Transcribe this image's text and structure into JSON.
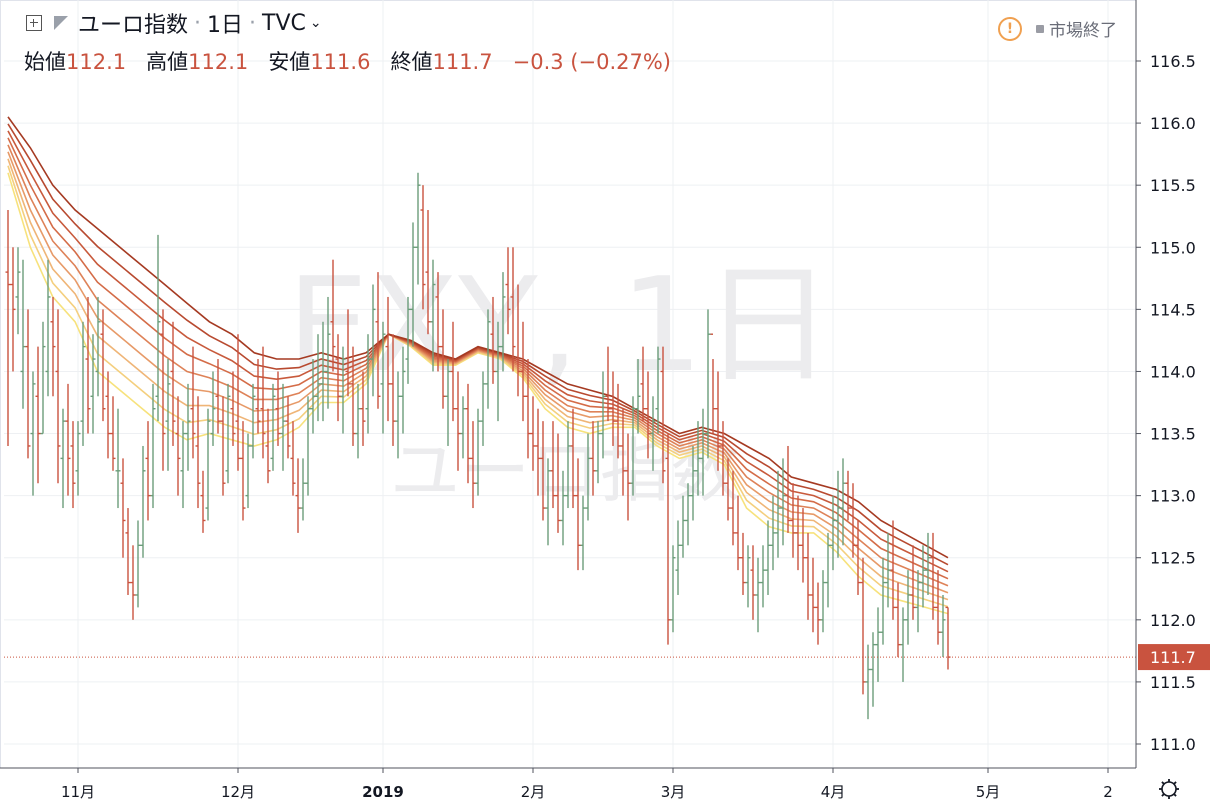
{
  "header": {
    "symbol": "ユーロ指数",
    "interval": "1日",
    "exchange": "TVC",
    "dot1": "·",
    "dot2": "·"
  },
  "ohlc": {
    "open_label": "始値",
    "open": "112.1",
    "high_label": "高値",
    "high": "112.1",
    "low_label": "安値",
    "low": "111.6",
    "close_label": "終値",
    "close": "111.7",
    "change": "−0.3 (−0.27%)"
  },
  "status": {
    "market": "市場終了",
    "warn_icon": "!"
  },
  "watermark": {
    "line1": "EXY, 1日",
    "line2": "ユーロ指数"
  },
  "price_label": "111.7",
  "colors": {
    "up": "#6b9d7a",
    "down": "#c9533f",
    "ribbon": [
      "#a53a22",
      "#b84a30",
      "#c85a3c",
      "#d46c48",
      "#de8258",
      "#e79a68",
      "#efb577",
      "#f4cf7e",
      "#f7e27c"
    ]
  },
  "chart_data": {
    "type": "ohlc",
    "ylim": [
      110.8,
      116.8
    ],
    "yticks": [
      "111.0",
      "111.5",
      "112.0",
      "112.5",
      "113.0",
      "113.5",
      "114.0",
      "114.5",
      "115.0",
      "115.5",
      "116.0",
      "116.5"
    ],
    "x_ticks": [
      {
        "label": "11月",
        "i": 14
      },
      {
        "label": "12月",
        "i": 46
      },
      {
        "label": "2019",
        "i": 75
      },
      {
        "label": "2月",
        "i": 105
      },
      {
        "label": "3月",
        "i": 133
      },
      {
        "label": "4月",
        "i": 165
      },
      {
        "label": "5月",
        "i": 196
      },
      {
        "label": "2",
        "i": 220
      }
    ],
    "bars": [
      [
        114.8,
        115.3,
        113.4,
        114.7
      ],
      [
        114.7,
        115.0,
        114.0,
        114.5
      ],
      [
        114.6,
        115.0,
        114.3,
        114.8
      ],
      [
        114.0,
        114.9,
        113.7,
        114.2
      ],
      [
        114.2,
        114.5,
        113.3,
        113.4
      ],
      [
        113.5,
        114.0,
        113.0,
        113.9
      ],
      [
        113.8,
        114.2,
        113.1,
        113.5
      ],
      [
        113.5,
        114.4,
        113.5,
        114.2
      ],
      [
        114.0,
        114.9,
        113.8,
        114.6
      ],
      [
        114.4,
        114.6,
        113.8,
        114.2
      ],
      [
        114.0,
        114.5,
        113.1,
        113.4
      ],
      [
        113.3,
        113.7,
        112.9,
        113.6
      ],
      [
        113.6,
        113.9,
        113.0,
        113.3
      ],
      [
        113.4,
        113.6,
        112.9,
        113.1
      ],
      [
        113.2,
        113.6,
        113.0,
        113.5
      ],
      [
        113.6,
        114.4,
        113.4,
        114.2
      ],
      [
        114.1,
        114.6,
        113.5,
        113.7
      ],
      [
        113.8,
        114.3,
        113.5,
        114.1
      ],
      [
        114.0,
        114.6,
        113.8,
        114.4
      ],
      [
        114.3,
        114.5,
        113.6,
        113.7
      ],
      [
        113.8,
        114.0,
        113.3,
        113.5
      ],
      [
        113.5,
        113.8,
        113.2,
        113.3
      ],
      [
        113.2,
        113.7,
        112.9,
        113.2
      ],
      [
        113.1,
        113.3,
        112.5,
        112.8
      ],
      [
        112.7,
        112.9,
        112.2,
        112.3
      ],
      [
        112.3,
        112.6,
        112.0,
        112.2
      ],
      [
        112.2,
        112.8,
        112.1,
        112.6
      ],
      [
        112.6,
        113.4,
        112.5,
        113.2
      ],
      [
        113.3,
        113.6,
        112.8,
        113.0
      ],
      [
        113.0,
        113.9,
        112.9,
        113.7
      ],
      [
        113.8,
        115.1,
        113.6,
        114.4
      ],
      [
        114.3,
        114.5,
        113.2,
        113.5
      ],
      [
        113.6,
        114.1,
        113.2,
        113.9
      ],
      [
        114.0,
        114.4,
        113.4,
        113.6
      ],
      [
        113.5,
        113.8,
        113.0,
        113.3
      ],
      [
        113.2,
        113.6,
        112.9,
        113.5
      ],
      [
        113.5,
        113.9,
        113.2,
        113.6
      ],
      [
        113.7,
        114.2,
        113.3,
        113.5
      ],
      [
        113.4,
        113.8,
        112.9,
        113.1
      ],
      [
        113.0,
        113.2,
        112.7,
        112.8
      ],
      [
        112.9,
        113.7,
        112.8,
        113.6
      ],
      [
        113.5,
        114.0,
        113.4,
        113.7
      ],
      [
        113.8,
        114.1,
        113.5,
        113.6
      ],
      [
        113.6,
        113.8,
        113.0,
        113.1
      ],
      [
        113.2,
        113.9,
        113.1,
        113.8
      ],
      [
        113.7,
        114.0,
        113.4,
        113.5
      ],
      [
        113.6,
        114.3,
        113.2,
        113.3
      ],
      [
        113.3,
        113.6,
        112.8,
        112.9
      ],
      [
        113.0,
        113.5,
        112.9,
        113.4
      ],
      [
        113.4,
        113.9,
        113.3,
        113.8
      ],
      [
        113.7,
        114.1,
        113.5,
        113.6
      ],
      [
        113.7,
        114.2,
        113.3,
        113.5
      ],
      [
        113.4,
        113.7,
        113.1,
        113.2
      ],
      [
        113.3,
        113.9,
        113.2,
        113.8
      ],
      [
        113.7,
        114.0,
        113.4,
        113.5
      ],
      [
        113.5,
        113.9,
        113.2,
        113.6
      ],
      [
        113.6,
        113.8,
        113.3,
        113.4
      ],
      [
        113.3,
        113.6,
        113.0,
        113.1
      ],
      [
        113.0,
        113.3,
        112.7,
        112.9
      ],
      [
        112.9,
        113.3,
        112.8,
        113.1
      ],
      [
        113.1,
        113.8,
        113.0,
        113.7
      ],
      [
        113.7,
        114.1,
        113.5,
        113.8
      ],
      [
        113.8,
        114.3,
        113.6,
        113.9
      ],
      [
        113.9,
        114.4,
        113.6,
        114.0
      ],
      [
        114.0,
        114.6,
        113.7,
        114.3
      ],
      [
        114.4,
        114.9,
        114.0,
        114.2
      ],
      [
        114.1,
        114.3,
        113.6,
        113.8
      ],
      [
        113.8,
        114.2,
        113.5,
        114.1
      ],
      [
        114.0,
        114.5,
        113.8,
        113.9
      ],
      [
        113.9,
        114.2,
        113.4,
        113.5
      ],
      [
        113.5,
        113.9,
        113.3,
        113.7
      ],
      [
        113.7,
        114.0,
        113.4,
        113.6
      ],
      [
        113.7,
        114.3,
        113.5,
        114.1
      ],
      [
        114.1,
        114.7,
        113.8,
        114.5
      ],
      [
        114.4,
        114.8,
        113.7,
        113.8
      ],
      [
        113.9,
        114.4,
        113.5,
        114.3
      ],
      [
        114.2,
        114.6,
        113.6,
        113.9
      ],
      [
        113.9,
        114.3,
        113.4,
        113.6
      ],
      [
        113.6,
        114.0,
        113.3,
        113.8
      ],
      [
        113.8,
        114.2,
        113.5,
        114.0
      ],
      [
        114.1,
        114.6,
        113.9,
        114.5
      ],
      [
        114.5,
        115.2,
        114.2,
        115.0
      ],
      [
        115.0,
        115.6,
        114.7,
        115.5
      ],
      [
        115.3,
        115.5,
        114.5,
        114.7
      ],
      [
        114.8,
        115.3,
        114.3,
        114.4
      ],
      [
        114.4,
        114.9,
        114.0,
        114.7
      ],
      [
        114.6,
        114.8,
        114.0,
        114.2
      ],
      [
        114.2,
        114.5,
        113.7,
        113.8
      ],
      [
        113.8,
        114.1,
        113.4,
        114.0
      ],
      [
        114.0,
        114.4,
        113.6,
        113.7
      ],
      [
        113.7,
        114.0,
        113.2,
        113.5
      ],
      [
        113.5,
        113.8,
        113.3,
        113.7
      ],
      [
        113.7,
        113.9,
        113.1,
        113.3
      ],
      [
        113.3,
        113.6,
        112.9,
        113.1
      ],
      [
        113.1,
        113.7,
        113.0,
        113.6
      ],
      [
        113.6,
        114.0,
        113.4,
        113.9
      ],
      [
        113.9,
        114.5,
        113.7,
        114.4
      ],
      [
        114.3,
        114.6,
        113.9,
        114.0
      ],
      [
        114.0,
        114.4,
        113.6,
        114.2
      ],
      [
        114.2,
        114.8,
        114.0,
        114.6
      ],
      [
        114.7,
        115.0,
        114.3,
        114.5
      ],
      [
        114.6,
        115.0,
        114.0,
        114.2
      ],
      [
        114.1,
        114.7,
        113.8,
        114.0
      ],
      [
        114.0,
        114.4,
        113.6,
        113.8
      ],
      [
        113.8,
        114.1,
        113.3,
        113.5
      ],
      [
        113.5,
        113.8,
        113.2,
        113.4
      ],
      [
        113.4,
        113.7,
        113.0,
        113.3
      ],
      [
        113.3,
        113.6,
        112.8,
        112.9
      ],
      [
        112.9,
        113.3,
        112.6,
        113.2
      ],
      [
        113.2,
        113.6,
        112.9,
        113.0
      ],
      [
        113.0,
        113.5,
        112.7,
        112.8
      ],
      [
        112.8,
        113.2,
        112.6,
        113.0
      ],
      [
        113.0,
        113.6,
        112.9,
        113.4
      ],
      [
        113.4,
        113.7,
        112.9,
        113.0
      ],
      [
        113.0,
        113.3,
        112.4,
        112.6
      ],
      [
        112.6,
        113.0,
        112.4,
        112.9
      ],
      [
        112.9,
        113.5,
        112.8,
        113.3
      ],
      [
        113.3,
        113.6,
        113.0,
        113.2
      ],
      [
        113.2,
        113.6,
        113.1,
        113.5
      ],
      [
        113.5,
        114.0,
        113.3,
        113.8
      ],
      [
        113.8,
        114.2,
        113.6,
        113.7
      ],
      [
        113.7,
        114.0,
        113.4,
        113.6
      ],
      [
        113.6,
        113.9,
        113.3,
        113.4
      ],
      [
        113.4,
        113.7,
        113.0,
        113.2
      ],
      [
        113.2,
        113.5,
        112.8,
        113.1
      ],
      [
        113.1,
        113.8,
        113.0,
        113.7
      ],
      [
        113.7,
        114.1,
        113.5,
        113.8
      ],
      [
        113.9,
        114.2,
        113.6,
        113.7
      ],
      [
        113.7,
        114.0,
        113.3,
        113.5
      ],
      [
        113.5,
        113.8,
        113.2,
        113.6
      ],
      [
        113.7,
        114.2,
        113.5,
        114.1
      ],
      [
        114.0,
        114.2,
        113.1,
        113.2
      ],
      [
        113.3,
        113.5,
        111.8,
        112.0
      ],
      [
        112.0,
        112.6,
        111.9,
        112.5
      ],
      [
        112.4,
        112.8,
        112.2,
        112.6
      ],
      [
        112.6,
        113.0,
        112.5,
        112.8
      ],
      [
        112.8,
        113.1,
        112.6,
        113.0
      ],
      [
        113.0,
        113.4,
        112.8,
        113.2
      ],
      [
        113.2,
        113.6,
        113.0,
        113.3
      ],
      [
        113.3,
        113.7,
        113.0,
        113.5
      ],
      [
        113.5,
        114.5,
        113.3,
        114.3
      ],
      [
        114.3,
        114.1,
        113.5,
        113.7
      ],
      [
        113.7,
        114.0,
        113.2,
        113.4
      ],
      [
        113.4,
        113.6,
        113.0,
        113.1
      ],
      [
        113.1,
        113.3,
        112.8,
        112.9
      ],
      [
        112.9,
        113.2,
        112.6,
        112.7
      ],
      [
        112.7,
        113.0,
        112.4,
        112.5
      ],
      [
        112.5,
        112.7,
        112.2,
        112.3
      ],
      [
        112.3,
        112.6,
        112.1,
        112.5
      ],
      [
        112.4,
        112.6,
        112.0,
        112.2
      ],
      [
        112.2,
        112.5,
        111.9,
        112.3
      ],
      [
        112.3,
        112.6,
        112.1,
        112.4
      ],
      [
        112.4,
        112.8,
        112.2,
        112.6
      ],
      [
        112.6,
        113.0,
        112.4,
        112.7
      ],
      [
        112.7,
        113.2,
        112.5,
        112.9
      ],
      [
        112.9,
        113.3,
        112.6,
        113.0
      ],
      [
        113.0,
        113.4,
        112.7,
        112.8
      ],
      [
        112.8,
        113.1,
        112.5,
        112.7
      ],
      [
        112.7,
        113.0,
        112.4,
        112.6
      ],
      [
        112.6,
        112.9,
        112.3,
        112.5
      ],
      [
        112.5,
        112.7,
        112.0,
        112.2
      ],
      [
        112.2,
        112.5,
        111.9,
        112.1
      ],
      [
        112.1,
        112.3,
        111.8,
        112.0
      ],
      [
        112.0,
        112.4,
        111.9,
        112.3
      ],
      [
        112.3,
        112.7,
        112.1,
        112.6
      ],
      [
        112.6,
        113.0,
        112.4,
        112.8
      ],
      [
        112.8,
        113.2,
        112.5,
        112.9
      ],
      [
        112.9,
        113.3,
        112.6,
        113.1
      ],
      [
        113.1,
        113.2,
        112.8,
        112.9
      ],
      [
        112.9,
        113.1,
        112.5,
        112.6
      ],
      [
        112.6,
        112.8,
        112.2,
        112.3
      ],
      [
        112.3,
        112.5,
        111.4,
        111.5
      ],
      [
        111.5,
        111.8,
        111.2,
        111.6
      ],
      [
        111.6,
        111.9,
        111.3,
        111.8
      ],
      [
        111.8,
        112.1,
        111.5,
        111.9
      ],
      [
        111.9,
        112.5,
        111.8,
        112.3
      ],
      [
        112.3,
        112.7,
        112.1,
        112.4
      ],
      [
        112.4,
        112.8,
        112.0,
        112.1
      ],
      [
        112.1,
        112.3,
        111.7,
        111.8
      ],
      [
        111.8,
        112.1,
        111.5,
        112.0
      ],
      [
        112.0,
        112.4,
        111.8,
        112.2
      ],
      [
        112.2,
        112.6,
        112.0,
        112.1
      ],
      [
        112.1,
        112.4,
        111.9,
        112.3
      ],
      [
        112.3,
        112.6,
        112.1,
        112.4
      ],
      [
        112.4,
        112.7,
        112.2,
        112.5
      ],
      [
        112.5,
        112.7,
        112.0,
        112.1
      ],
      [
        112.1,
        112.4,
        111.8,
        111.9
      ],
      [
        111.9,
        112.2,
        111.7,
        112.0
      ],
      [
        112.1,
        112.1,
        111.6,
        111.7
      ]
    ],
    "ribbon_offsets": [
      0.0,
      -0.07,
      -0.14,
      -0.21,
      -0.28,
      -0.35,
      -0.42,
      -0.5,
      -0.58
    ],
    "ribbon_top": [
      116.05,
      115.8,
      115.5,
      115.3,
      115.15,
      115.0,
      114.85,
      114.7,
      114.55,
      114.4,
      114.3,
      114.15,
      114.1,
      114.1,
      114.15,
      114.1,
      114.15,
      114.3,
      114.25,
      114.15,
      114.1,
      114.2,
      114.15,
      114.1,
      114.0,
      113.9,
      113.85,
      113.8,
      113.7,
      113.6,
      113.5,
      113.55,
      113.5,
      113.4,
      113.3,
      113.15,
      113.1,
      113.05,
      112.95,
      112.8,
      112.7,
      112.6,
      112.5
    ],
    "ribbon_bottom": [
      115.6,
      115.0,
      114.6,
      114.4,
      114.0,
      113.85,
      113.7,
      113.55,
      113.45,
      113.5,
      113.45,
      113.4,
      113.45,
      113.55,
      113.75,
      113.75,
      113.9,
      114.3,
      114.2,
      114.05,
      114.05,
      114.15,
      114.1,
      113.95,
      113.7,
      113.55,
      113.5,
      113.55,
      113.55,
      113.4,
      113.3,
      113.35,
      113.25,
      112.9,
      112.75,
      112.7,
      112.7,
      112.55,
      112.35,
      112.2,
      112.15,
      112.1,
      112.05
    ]
  }
}
